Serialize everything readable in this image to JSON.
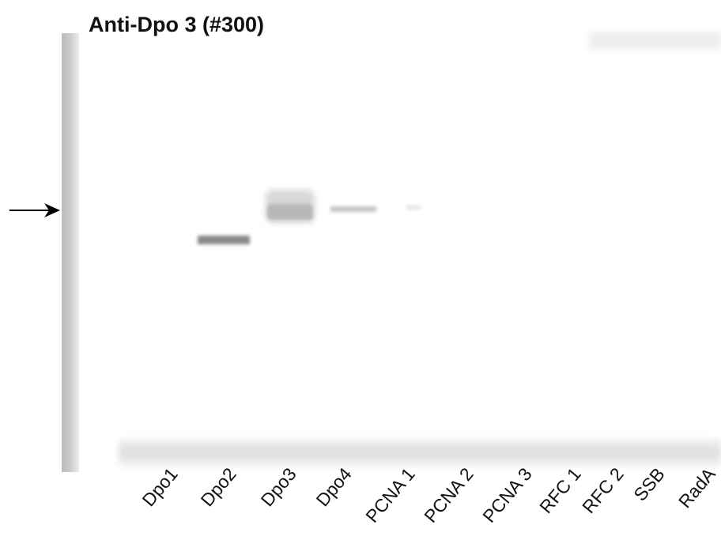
{
  "title": "Anti-Dpo 3 (#300)",
  "lanes": [
    "Dpo1",
    "Dpo2",
    "Dpo3",
    "Dpo4",
    "PCNA 1",
    "PCNA 2",
    "PCNA 3",
    "RFC 1",
    "RFC 2",
    "SSB",
    "RadA"
  ]
}
